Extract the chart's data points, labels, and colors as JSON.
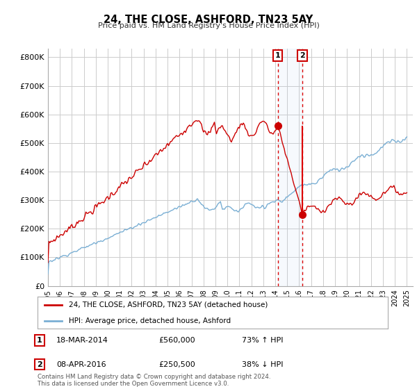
{
  "title": "24, THE CLOSE, ASHFORD, TN23 5AY",
  "subtitle": "Price paid vs. HM Land Registry's House Price Index (HPI)",
  "ylim": [
    0,
    830000
  ],
  "yticks": [
    0,
    100000,
    200000,
    300000,
    400000,
    500000,
    600000,
    700000,
    800000
  ],
  "ytick_labels": [
    "£0",
    "£100K",
    "£200K",
    "£300K",
    "£400K",
    "£500K",
    "£600K",
    "£700K",
    "£800K"
  ],
  "sale1": {
    "date_num": 2014.21,
    "price": 560000,
    "label": "1",
    "date_str": "18-MAR-2014",
    "price_str": "£560,000",
    "pct": "73% ↑ HPI"
  },
  "sale2": {
    "date_num": 2016.27,
    "price": 250500,
    "label": "2",
    "date_str": "08-APR-2016",
    "price_str": "£250,500",
    "pct": "38% ↓ HPI"
  },
  "legend_line1": "24, THE CLOSE, ASHFORD, TN23 5AY (detached house)",
  "legend_line2": "HPI: Average price, detached house, Ashford",
  "footnote": "Contains HM Land Registry data © Crown copyright and database right 2024.\nThis data is licensed under the Open Government Licence v3.0.",
  "line_color_red": "#cc0000",
  "line_color_blue": "#7aafd4",
  "background_color": "#ffffff",
  "grid_color": "#cccccc",
  "sale_vline_color": "#dd0000"
}
